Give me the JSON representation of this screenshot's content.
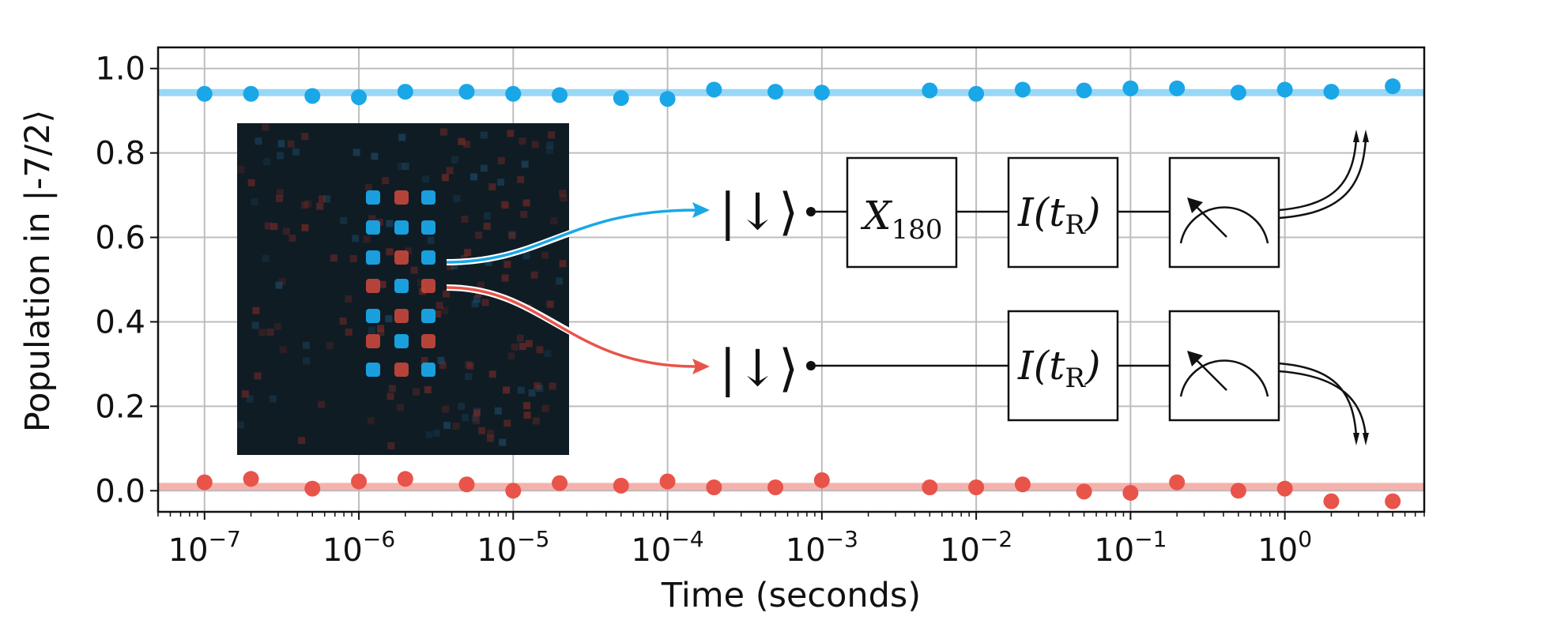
{
  "chart_data": {
    "type": "scatter",
    "xlabel": "Time (seconds)",
    "ylabel": "Population in |-7/2⟩",
    "xscale": "log",
    "xlim": [
      5e-08,
      8
    ],
    "ylim": [
      -0.05,
      1.05
    ],
    "yticks": [
      0.0,
      0.2,
      0.4,
      0.6,
      0.8,
      1.0
    ],
    "ytick_labels": [
      "0.0",
      "0.2",
      "0.4",
      "0.6",
      "0.8",
      "1.0"
    ],
    "xtick_exponents": [
      "-7",
      "-6",
      "-5",
      "-4",
      "-3",
      "-2",
      "-1",
      "0"
    ],
    "xtick_base": "10",
    "grid": true,
    "series": [
      {
        "color": "#1aa7e8",
        "reference_line": 0.943,
        "x": [
          1e-07,
          2e-07,
          5e-07,
          1e-06,
          2e-06,
          5e-06,
          1e-05,
          2e-05,
          5e-05,
          0.0001,
          0.0002,
          0.0005,
          0.001,
          0.005,
          0.01,
          0.02,
          0.05,
          0.1,
          0.2,
          0.5,
          1,
          2,
          5
        ],
        "values": [
          0.94,
          0.94,
          0.935,
          0.932,
          0.945,
          0.945,
          0.94,
          0.937,
          0.93,
          0.928,
          0.95,
          0.945,
          0.943,
          0.948,
          0.94,
          0.95,
          0.948,
          0.953,
          0.953,
          0.943,
          0.95,
          0.945,
          0.958
        ]
      },
      {
        "color": "#e8544a",
        "reference_line": 0.01,
        "x": [
          1e-07,
          2e-07,
          5e-07,
          1e-06,
          2e-06,
          5e-06,
          1e-05,
          2e-05,
          5e-05,
          0.0001,
          0.0002,
          0.0005,
          0.001,
          0.005,
          0.01,
          0.02,
          0.05,
          0.1,
          0.2,
          0.5,
          1,
          2,
          5
        ],
        "values": [
          0.02,
          0.028,
          0.005,
          0.022,
          0.028,
          0.015,
          0.0,
          0.018,
          0.012,
          0.022,
          0.008,
          0.008,
          0.025,
          0.008,
          0.008,
          0.015,
          -0.002,
          -0.005,
          0.02,
          0.0,
          0.005,
          -0.025,
          -0.025
        ]
      }
    ],
    "inset": {
      "top_state": "|↓⟩",
      "bottom_state": "|↓⟩",
      "gate_x_main": "X",
      "gate_x_sub": "180",
      "gate_i_main": "I(t",
      "gate_i_sub": "R",
      "gate_i_close": ")",
      "colors": {
        "blue_arrow": "#1aa7e8",
        "red_arrow": "#e8544a",
        "image_bg": "#0f1c24",
        "atom_blue": "#1aa7e8",
        "atom_red": "#d24a3e"
      }
    }
  }
}
